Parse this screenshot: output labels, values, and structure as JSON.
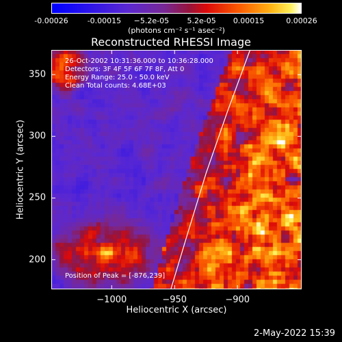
{
  "chart_data": {
    "type": "heatmap",
    "title": "Reconstructed RHESSI Image",
    "xlabel": "Heliocentric X (arcsec)",
    "ylabel": "Heliocentric Y (arcsec)",
    "xlim": [
      -1048,
      -849
    ],
    "ylim": [
      176,
      370
    ],
    "xticks": [
      -1000,
      -950,
      -900
    ],
    "xtick_labels": [
      "−1000",
      "−950",
      "−900"
    ],
    "yticks": [
      200,
      250,
      300,
      350
    ],
    "ytick_labels": [
      "200",
      "250",
      "300",
      "350"
    ],
    "colorbar": {
      "range": [
        -0.00026,
        0.00026
      ],
      "ticks": [
        -0.00026,
        -0.00015,
        -5.2e-05,
        5.2e-05,
        0.00015,
        0.00026
      ],
      "tick_labels": [
        "-0.00026",
        "-0.00015",
        "−5.2e-05",
        "5.2e-05",
        "0.00015",
        "0.00026"
      ],
      "unit_label": "(photons cm⁻² s⁻¹ asec⁻²)"
    },
    "annotations": [
      "26-Oct-2002 10:31:36.000 to 10:36:28.000",
      "Detectors: 3F 4F 5F 6F 7F 8F, Att 0",
      "Energy Range: 25.0 - 50.0 keV",
      "Clean     Total counts: 4.68E+03"
    ],
    "peak_label": "Position of Peak = [-876,239]",
    "limb_curve": [
      [
        -953,
        176
      ],
      [
        -940,
        220
      ],
      [
        -925,
        270
      ],
      [
        -908,
        320
      ],
      [
        -890,
        370
      ]
    ],
    "colors": {
      "background": "#000000",
      "text": "#ffffff",
      "limb": "#ffffff"
    }
  },
  "footer": {
    "timestamp": "2-May-2022 15:39"
  }
}
